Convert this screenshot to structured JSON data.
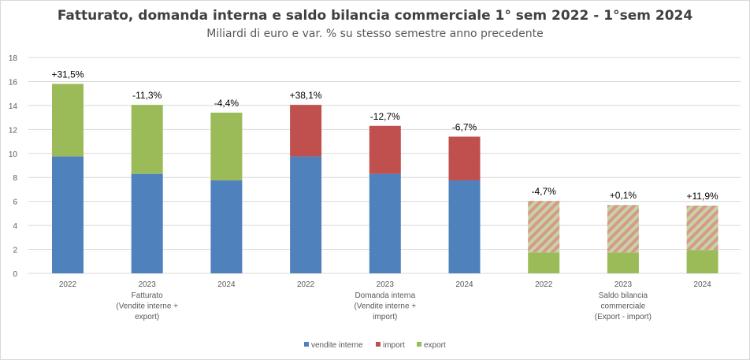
{
  "chart_data": {
    "type": "bar",
    "stacked": true,
    "title": "Fatturato, domanda interna e saldo bilancia commerciale 1° sem 2022 - 1°sem 2024",
    "subtitle": "Miliardi di euro e var. % su stesso semestre anno precedente",
    "xlabel": "",
    "ylabel": "",
    "ylim": [
      0,
      18
    ],
    "yticks": [
      0,
      2,
      4,
      6,
      8,
      10,
      12,
      14,
      16,
      18
    ],
    "grid": true,
    "legend_position": "bottom",
    "groups": [
      {
        "label_lines": [
          "Fatturato",
          "(Vendite interne +",
          "export)"
        ]
      },
      {
        "label_lines": [
          "Domanda interna",
          "(Vendite interne +",
          "import)"
        ]
      },
      {
        "label_lines": [
          "Saldo bilancia",
          "commerciale",
          "(Export - import)"
        ]
      }
    ],
    "categories": [
      "2022",
      "2023",
      "2024",
      "2022",
      "2023",
      "2024",
      "2022",
      "2023",
      "2024"
    ],
    "series": [
      {
        "name": "vendite interne",
        "color": "#4f81bd",
        "legend": true,
        "values": [
          9.75,
          8.3,
          7.75,
          9.75,
          8.3,
          7.75,
          0,
          0,
          0
        ]
      },
      {
        "name": "import",
        "color": "#c0504d",
        "legend": true,
        "values": [
          0,
          0,
          0,
          4.3,
          4.0,
          3.65,
          0,
          0,
          0
        ]
      },
      {
        "name": "export",
        "color": "#9bbb59",
        "legend": true,
        "values": [
          6.05,
          5.75,
          5.65,
          0,
          0,
          0,
          1.75,
          1.75,
          1.95
        ]
      },
      {
        "name": "saldo",
        "color": "#da9694",
        "color2": "#c4d79b",
        "hatched": true,
        "legend": false,
        "values": [
          0,
          0,
          0,
          0,
          0,
          0,
          4.3,
          3.95,
          3.7
        ]
      }
    ],
    "data_labels": [
      "+31,5%",
      "-11,3%",
      "-4,4%",
      "+38,1%",
      "-12,7%",
      "-6,7%",
      "-4,7%",
      "+0,1%",
      "+11,9%"
    ]
  }
}
